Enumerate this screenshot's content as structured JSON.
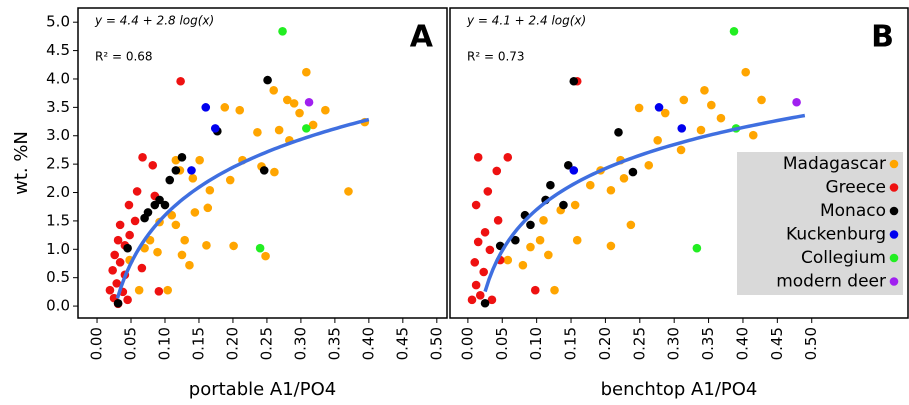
{
  "chart_data": [
    {
      "type": "scatter",
      "panel_label": "A",
      "xlabel": "portable A1/PO4",
      "ylabel": "wt. %N",
      "equation": "y = 4.4 + 2.8 log(x)",
      "r2": "R² = 0.68",
      "fit": {
        "intercept": 4.4,
        "slope": 2.8,
        "x": [
          0.03,
          0.4
        ],
        "color": "#3f6fe0"
      },
      "xlim": [
        -0.028,
        0.515
      ],
      "ylim": [
        -0.21,
        5.25
      ],
      "xticks": [
        {
          "value": 0,
          "label": "0.00"
        },
        {
          "value": 0.05,
          "label": "0.05"
        },
        {
          "value": 0.1,
          "label": "0.10"
        },
        {
          "value": 0.15,
          "label": "0.15"
        },
        {
          "value": 0.2,
          "label": "0.20"
        },
        {
          "value": 0.25,
          "label": "0.25"
        },
        {
          "value": 0.3,
          "label": "0.30"
        },
        {
          "value": 0.35,
          "label": "0.35"
        },
        {
          "value": 0.4,
          "label": "0.40"
        },
        {
          "value": 0.45,
          "label": "0.45"
        },
        {
          "value": 0.5,
          "label": "0.50"
        }
      ],
      "yticks": [
        {
          "value": 0,
          "label": "0.0"
        },
        0.5,
        {
          "value": 1,
          "label": "1.0"
        },
        1.5,
        {
          "value": 2,
          "label": "2.0"
        },
        2.5,
        {
          "value": 3,
          "label": "3.0"
        },
        3.5,
        {
          "value": 4,
          "label": "4.0"
        },
        4.5,
        {
          "value": 5,
          "label": "5.0"
        }
      ],
      "legend": false,
      "series": [
        {
          "name": "Madagascar",
          "color": "#ffa500",
          "x": [
            0.308,
            0.26,
            0.28,
            0.29,
            0.298,
            0.336,
            0.318,
            0.394,
            0.268,
            0.283,
            0.236,
            0.21,
            0.188,
            0.214,
            0.242,
            0.261,
            0.196,
            0.151,
            0.122,
            0.116,
            0.141,
            0.166,
            0.37,
            0.163,
            0.144,
            0.11,
            0.092,
            0.078,
            0.07,
            0.089,
            0.116,
            0.129,
            0.125,
            0.136,
            0.161,
            0.248,
            0.201,
            0.062,
            0.104,
            0.048
          ],
          "values": [
            4.12,
            3.8,
            3.63,
            3.57,
            3.4,
            3.45,
            3.19,
            3.24,
            3.1,
            2.92,
            3.06,
            3.45,
            3.5,
            2.57,
            2.46,
            2.36,
            2.22,
            2.57,
            2.39,
            2.57,
            2.25,
            2.04,
            2.02,
            1.73,
            1.65,
            1.6,
            1.48,
            1.16,
            1.02,
            0.95,
            1.43,
            1.16,
            0.9,
            0.72,
            1.07,
            0.88,
            1.06,
            0.28,
            0.28,
            0.81
          ]
        },
        {
          "name": "Greece",
          "color": "#ee1111",
          "x": [
            0.123,
            0.067,
            0.082,
            0.059,
            0.085,
            0.047,
            0.056,
            0.034,
            0.048,
            0.031,
            0.041,
            0.026,
            0.034,
            0.023,
            0.041,
            0.029,
            0.019,
            0.038,
            0.025,
            0.045,
            0.091,
            0.031,
            0.066
          ],
          "values": [
            3.96,
            2.62,
            2.48,
            2.02,
            1.94,
            1.78,
            1.5,
            1.43,
            1.25,
            1.16,
            1.07,
            0.9,
            0.77,
            0.63,
            0.55,
            0.4,
            0.28,
            0.25,
            0.14,
            0.11,
            0.26,
            0.04,
            0.67
          ]
        },
        {
          "name": "Monaco",
          "color": "#000000",
          "x": [
            0.251,
            0.177,
            0.125,
            0.116,
            0.107,
            0.092,
            0.085,
            0.075,
            0.07,
            0.1,
            0.045,
            0.246,
            0.031
          ],
          "values": [
            3.98,
            3.08,
            2.62,
            2.39,
            2.22,
            1.87,
            1.78,
            1.65,
            1.55,
            1.78,
            1.02,
            2.39,
            0.05
          ]
        },
        {
          "name": "Kuckenburg",
          "color": "#0000ee",
          "x": [
            0.16,
            0.174,
            0.139
          ],
          "values": [
            3.5,
            3.13,
            2.39
          ]
        },
        {
          "name": "Collegium",
          "color": "#22ee22",
          "x": [
            0.273,
            0.308,
            0.24
          ],
          "values": [
            4.84,
            3.13,
            1.02
          ]
        },
        {
          "name": "modern deer",
          "color": "#a020f0",
          "x": [
            0.312
          ],
          "values": [
            3.59
          ]
        }
      ]
    },
    {
      "type": "scatter",
      "panel_label": "B",
      "xlabel": "benchtop A1/PO4",
      "equation": "y = 4.1 + 2.4 log(x)",
      "r2": "R² = 0.73",
      "fit": {
        "intercept": 4.1,
        "slope": 2.4,
        "x": [
          0.025,
          0.49
        ],
        "color": "#3f6fe0"
      },
      "xlim": [
        -0.026,
        0.64
      ],
      "ylim": [
        -0.21,
        5.25
      ],
      "xticks": [
        {
          "value": 0,
          "label": "0.00"
        },
        {
          "value": 0.05,
          "label": "0.05"
        },
        {
          "value": 0.1,
          "label": "0.10"
        },
        {
          "value": 0.15,
          "label": "0.15"
        },
        {
          "value": 0.2,
          "label": "0.20"
        },
        {
          "value": 0.25,
          "label": "0.25"
        },
        {
          "value": 0.3,
          "label": "0.30"
        },
        {
          "value": 0.35,
          "label": "0.35"
        },
        {
          "value": 0.4,
          "label": "0.40"
        },
        {
          "value": 0.45,
          "label": "0.45"
        },
        {
          "value": 0.5,
          "label": "0.50"
        }
      ],
      "legend": true,
      "legend_position": "right",
      "series": [
        {
          "name": "Madagascar",
          "color": "#ffa500",
          "x": [
            0.404,
            0.344,
            0.314,
            0.354,
            0.427,
            0.249,
            0.287,
            0.368,
            0.339,
            0.276,
            0.31,
            0.415,
            0.222,
            0.193,
            0.263,
            0.227,
            0.208,
            0.178,
            0.156,
            0.135,
            0.11,
            0.159,
            0.105,
            0.117,
            0.08,
            0.208,
            0.126,
            0.058,
            0.091,
            0.237
          ],
          "values": [
            4.12,
            3.8,
            3.63,
            3.54,
            3.63,
            3.49,
            3.4,
            3.31,
            3.1,
            2.92,
            2.75,
            3.01,
            2.57,
            2.39,
            2.48,
            2.25,
            2.04,
            2.13,
            1.78,
            1.69,
            1.51,
            1.16,
            1.16,
            0.9,
            0.72,
            1.06,
            0.28,
            0.81,
            1.04,
            1.43
          ]
        },
        {
          "name": "Greece",
          "color": "#ee1111",
          "x": [
            0.159,
            0.058,
            0.015,
            0.042,
            0.029,
            0.012,
            0.044,
            0.025,
            0.015,
            0.032,
            0.01,
            0.023,
            0.012,
            0.018,
            0.035,
            0.098,
            0.006,
            0.047
          ],
          "values": [
            3.96,
            2.62,
            2.62,
            2.38,
            2.02,
            1.78,
            1.51,
            1.3,
            1.13,
            0.99,
            0.77,
            0.6,
            0.37,
            0.19,
            0.11,
            0.28,
            0.11,
            0.81
          ]
        },
        {
          "name": "Monaco",
          "color": "#000000",
          "x": [
            0.154,
            0.219,
            0.146,
            0.12,
            0.113,
            0.139,
            0.083,
            0.091,
            0.069,
            0.047,
            0.24,
            0.025
          ],
          "values": [
            3.96,
            3.06,
            2.48,
            2.13,
            1.87,
            1.78,
            1.6,
            1.43,
            1.16,
            1.06,
            2.36,
            0.05
          ]
        },
        {
          "name": "Kuckenburg",
          "color": "#0000ee",
          "x": [
            0.278,
            0.311,
            0.154
          ],
          "values": [
            3.5,
            3.13,
            2.39
          ]
        },
        {
          "name": "Collegium",
          "color": "#22ee22",
          "x": [
            0.387,
            0.39,
            0.333
          ],
          "values": [
            4.84,
            3.13,
            1.02
          ]
        },
        {
          "name": "modern deer",
          "color": "#a020f0",
          "x": [
            0.478
          ],
          "values": [
            3.59
          ]
        }
      ]
    }
  ]
}
